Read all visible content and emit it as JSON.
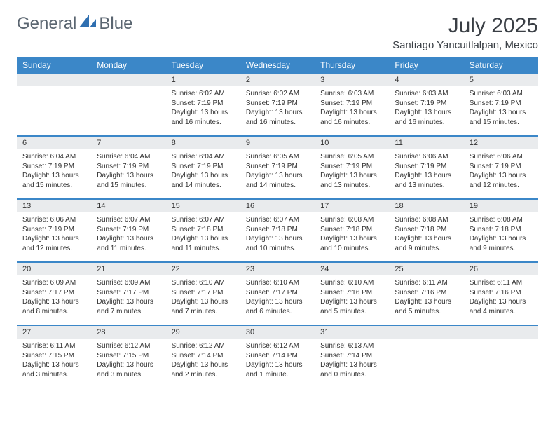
{
  "brand": {
    "part1": "General",
    "part2": "Blue"
  },
  "title": "July 2025",
  "location": "Santiago Yancuitlalpan, Mexico",
  "colors": {
    "header_bg": "#3b87c8",
    "header_text": "#ffffff",
    "daynum_bg": "#e9ebed",
    "week_divider": "#3b87c8",
    "text": "#333333",
    "logo_text": "#5a6570",
    "logo_accent": "#2f6fb0"
  },
  "day_names": [
    "Sunday",
    "Monday",
    "Tuesday",
    "Wednesday",
    "Thursday",
    "Friday",
    "Saturday"
  ],
  "weeks": [
    [
      {
        "empty": true
      },
      {
        "empty": true
      },
      {
        "day": "1",
        "sunrise": "Sunrise: 6:02 AM",
        "sunset": "Sunset: 7:19 PM",
        "dl1": "Daylight: 13 hours",
        "dl2": "and 16 minutes."
      },
      {
        "day": "2",
        "sunrise": "Sunrise: 6:02 AM",
        "sunset": "Sunset: 7:19 PM",
        "dl1": "Daylight: 13 hours",
        "dl2": "and 16 minutes."
      },
      {
        "day": "3",
        "sunrise": "Sunrise: 6:03 AM",
        "sunset": "Sunset: 7:19 PM",
        "dl1": "Daylight: 13 hours",
        "dl2": "and 16 minutes."
      },
      {
        "day": "4",
        "sunrise": "Sunrise: 6:03 AM",
        "sunset": "Sunset: 7:19 PM",
        "dl1": "Daylight: 13 hours",
        "dl2": "and 16 minutes."
      },
      {
        "day": "5",
        "sunrise": "Sunrise: 6:03 AM",
        "sunset": "Sunset: 7:19 PM",
        "dl1": "Daylight: 13 hours",
        "dl2": "and 15 minutes."
      }
    ],
    [
      {
        "day": "6",
        "sunrise": "Sunrise: 6:04 AM",
        "sunset": "Sunset: 7:19 PM",
        "dl1": "Daylight: 13 hours",
        "dl2": "and 15 minutes."
      },
      {
        "day": "7",
        "sunrise": "Sunrise: 6:04 AM",
        "sunset": "Sunset: 7:19 PM",
        "dl1": "Daylight: 13 hours",
        "dl2": "and 15 minutes."
      },
      {
        "day": "8",
        "sunrise": "Sunrise: 6:04 AM",
        "sunset": "Sunset: 7:19 PM",
        "dl1": "Daylight: 13 hours",
        "dl2": "and 14 minutes."
      },
      {
        "day": "9",
        "sunrise": "Sunrise: 6:05 AM",
        "sunset": "Sunset: 7:19 PM",
        "dl1": "Daylight: 13 hours",
        "dl2": "and 14 minutes."
      },
      {
        "day": "10",
        "sunrise": "Sunrise: 6:05 AM",
        "sunset": "Sunset: 7:19 PM",
        "dl1": "Daylight: 13 hours",
        "dl2": "and 13 minutes."
      },
      {
        "day": "11",
        "sunrise": "Sunrise: 6:06 AM",
        "sunset": "Sunset: 7:19 PM",
        "dl1": "Daylight: 13 hours",
        "dl2": "and 13 minutes."
      },
      {
        "day": "12",
        "sunrise": "Sunrise: 6:06 AM",
        "sunset": "Sunset: 7:19 PM",
        "dl1": "Daylight: 13 hours",
        "dl2": "and 12 minutes."
      }
    ],
    [
      {
        "day": "13",
        "sunrise": "Sunrise: 6:06 AM",
        "sunset": "Sunset: 7:19 PM",
        "dl1": "Daylight: 13 hours",
        "dl2": "and 12 minutes."
      },
      {
        "day": "14",
        "sunrise": "Sunrise: 6:07 AM",
        "sunset": "Sunset: 7:19 PM",
        "dl1": "Daylight: 13 hours",
        "dl2": "and 11 minutes."
      },
      {
        "day": "15",
        "sunrise": "Sunrise: 6:07 AM",
        "sunset": "Sunset: 7:18 PM",
        "dl1": "Daylight: 13 hours",
        "dl2": "and 11 minutes."
      },
      {
        "day": "16",
        "sunrise": "Sunrise: 6:07 AM",
        "sunset": "Sunset: 7:18 PM",
        "dl1": "Daylight: 13 hours",
        "dl2": "and 10 minutes."
      },
      {
        "day": "17",
        "sunrise": "Sunrise: 6:08 AM",
        "sunset": "Sunset: 7:18 PM",
        "dl1": "Daylight: 13 hours",
        "dl2": "and 10 minutes."
      },
      {
        "day": "18",
        "sunrise": "Sunrise: 6:08 AM",
        "sunset": "Sunset: 7:18 PM",
        "dl1": "Daylight: 13 hours",
        "dl2": "and 9 minutes."
      },
      {
        "day": "19",
        "sunrise": "Sunrise: 6:08 AM",
        "sunset": "Sunset: 7:18 PM",
        "dl1": "Daylight: 13 hours",
        "dl2": "and 9 minutes."
      }
    ],
    [
      {
        "day": "20",
        "sunrise": "Sunrise: 6:09 AM",
        "sunset": "Sunset: 7:17 PM",
        "dl1": "Daylight: 13 hours",
        "dl2": "and 8 minutes."
      },
      {
        "day": "21",
        "sunrise": "Sunrise: 6:09 AM",
        "sunset": "Sunset: 7:17 PM",
        "dl1": "Daylight: 13 hours",
        "dl2": "and 7 minutes."
      },
      {
        "day": "22",
        "sunrise": "Sunrise: 6:10 AM",
        "sunset": "Sunset: 7:17 PM",
        "dl1": "Daylight: 13 hours",
        "dl2": "and 7 minutes."
      },
      {
        "day": "23",
        "sunrise": "Sunrise: 6:10 AM",
        "sunset": "Sunset: 7:17 PM",
        "dl1": "Daylight: 13 hours",
        "dl2": "and 6 minutes."
      },
      {
        "day": "24",
        "sunrise": "Sunrise: 6:10 AM",
        "sunset": "Sunset: 7:16 PM",
        "dl1": "Daylight: 13 hours",
        "dl2": "and 5 minutes."
      },
      {
        "day": "25",
        "sunrise": "Sunrise: 6:11 AM",
        "sunset": "Sunset: 7:16 PM",
        "dl1": "Daylight: 13 hours",
        "dl2": "and 5 minutes."
      },
      {
        "day": "26",
        "sunrise": "Sunrise: 6:11 AM",
        "sunset": "Sunset: 7:16 PM",
        "dl1": "Daylight: 13 hours",
        "dl2": "and 4 minutes."
      }
    ],
    [
      {
        "day": "27",
        "sunrise": "Sunrise: 6:11 AM",
        "sunset": "Sunset: 7:15 PM",
        "dl1": "Daylight: 13 hours",
        "dl2": "and 3 minutes."
      },
      {
        "day": "28",
        "sunrise": "Sunrise: 6:12 AM",
        "sunset": "Sunset: 7:15 PM",
        "dl1": "Daylight: 13 hours",
        "dl2": "and 3 minutes."
      },
      {
        "day": "29",
        "sunrise": "Sunrise: 6:12 AM",
        "sunset": "Sunset: 7:14 PM",
        "dl1": "Daylight: 13 hours",
        "dl2": "and 2 minutes."
      },
      {
        "day": "30",
        "sunrise": "Sunrise: 6:12 AM",
        "sunset": "Sunset: 7:14 PM",
        "dl1": "Daylight: 13 hours",
        "dl2": "and 1 minute."
      },
      {
        "day": "31",
        "sunrise": "Sunrise: 6:13 AM",
        "sunset": "Sunset: 7:14 PM",
        "dl1": "Daylight: 13 hours",
        "dl2": "and 0 minutes."
      },
      {
        "empty": true
      },
      {
        "empty": true
      }
    ]
  ]
}
